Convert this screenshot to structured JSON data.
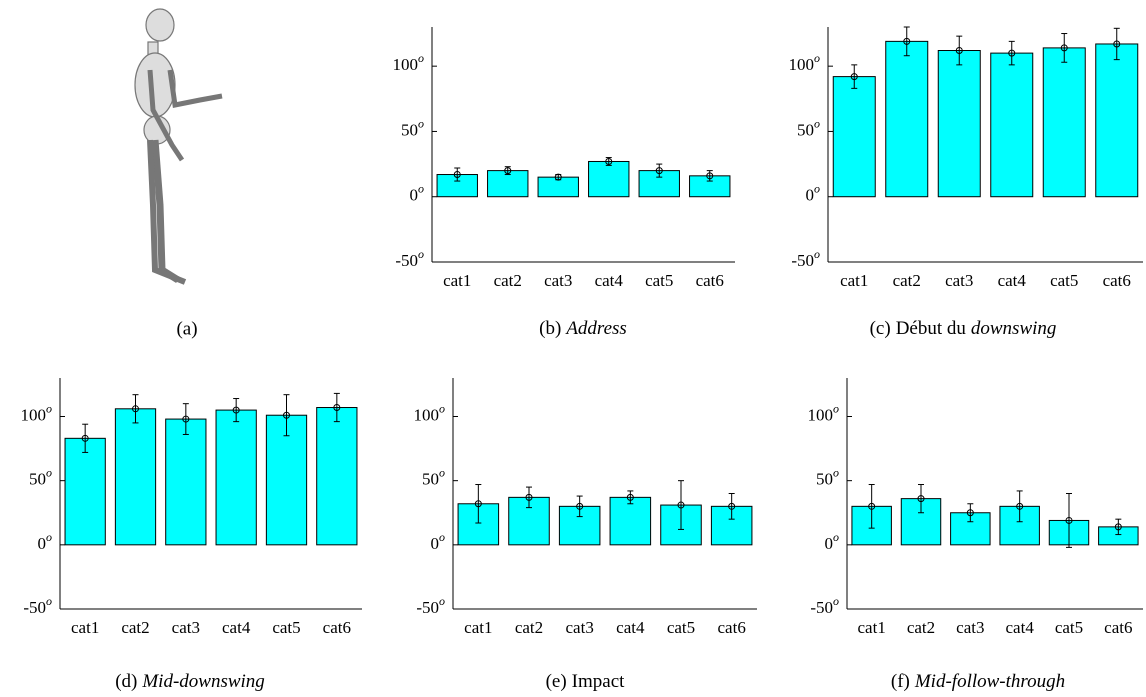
{
  "panel_a_label": "(a)",
  "chart_data": [
    {
      "type": "bar",
      "label": "(b)",
      "caption": [
        "Address"
      ],
      "caption_italic": [
        true
      ],
      "categories": [
        "cat1",
        "cat2",
        "cat3",
        "cat4",
        "cat5",
        "cat6"
      ],
      "values": [
        17,
        20,
        15,
        27,
        20,
        16
      ],
      "errors": [
        5,
        3,
        2,
        3,
        5,
        4
      ],
      "color": "#00ffff",
      "ylim": [
        -50,
        130
      ],
      "yticks": [
        -50,
        0,
        50,
        100
      ],
      "y_unit": "o"
    },
    {
      "type": "bar",
      "label": "(c)",
      "caption": [
        "Début du",
        "downswing"
      ],
      "caption_italic": [
        false,
        true
      ],
      "categories": [
        "cat1",
        "cat2",
        "cat3",
        "cat4",
        "cat5",
        "cat6"
      ],
      "values": [
        92,
        119,
        112,
        110,
        114,
        117
      ],
      "errors": [
        9,
        11,
        11,
        9,
        11,
        12
      ],
      "color": "#00ffff",
      "ylim": [
        -50,
        130
      ],
      "yticks": [
        -50,
        0,
        50,
        100
      ],
      "y_unit": "o"
    },
    {
      "type": "bar",
      "label": "(d)",
      "caption": [
        "Mid-downswing"
      ],
      "caption_italic": [
        true
      ],
      "categories": [
        "cat1",
        "cat2",
        "cat3",
        "cat4",
        "cat5",
        "cat6"
      ],
      "values": [
        83,
        106,
        98,
        105,
        101,
        107
      ],
      "errors": [
        11,
        11,
        12,
        9,
        16,
        11
      ],
      "color": "#00ffff",
      "ylim": [
        -50,
        130
      ],
      "yticks": [
        -50,
        0,
        50,
        100
      ],
      "y_unit": "o"
    },
    {
      "type": "bar",
      "label": "(e)",
      "caption": [
        "Impact"
      ],
      "caption_italic": [
        false
      ],
      "categories": [
        "cat1",
        "cat2",
        "cat3",
        "cat4",
        "cat5",
        "cat6"
      ],
      "values": [
        32,
        37,
        30,
        37,
        31,
        30
      ],
      "errors": [
        15,
        8,
        8,
        5,
        19,
        10
      ],
      "color": "#00ffff",
      "ylim": [
        -50,
        130
      ],
      "yticks": [
        -50,
        0,
        50,
        100
      ],
      "y_unit": "o"
    },
    {
      "type": "bar",
      "label": "(f)",
      "caption": [
        "Mid-follow-through"
      ],
      "caption_italic": [
        true
      ],
      "categories": [
        "cat1",
        "cat2",
        "cat3",
        "cat4",
        "cat5",
        "cat6"
      ],
      "values": [
        30,
        36,
        25,
        30,
        19,
        14
      ],
      "errors": [
        17,
        11,
        7,
        12,
        21,
        6
      ],
      "color": "#00ffff",
      "ylim": [
        -50,
        130
      ],
      "yticks": [
        -50,
        0,
        50,
        100
      ],
      "y_unit": "o"
    }
  ]
}
